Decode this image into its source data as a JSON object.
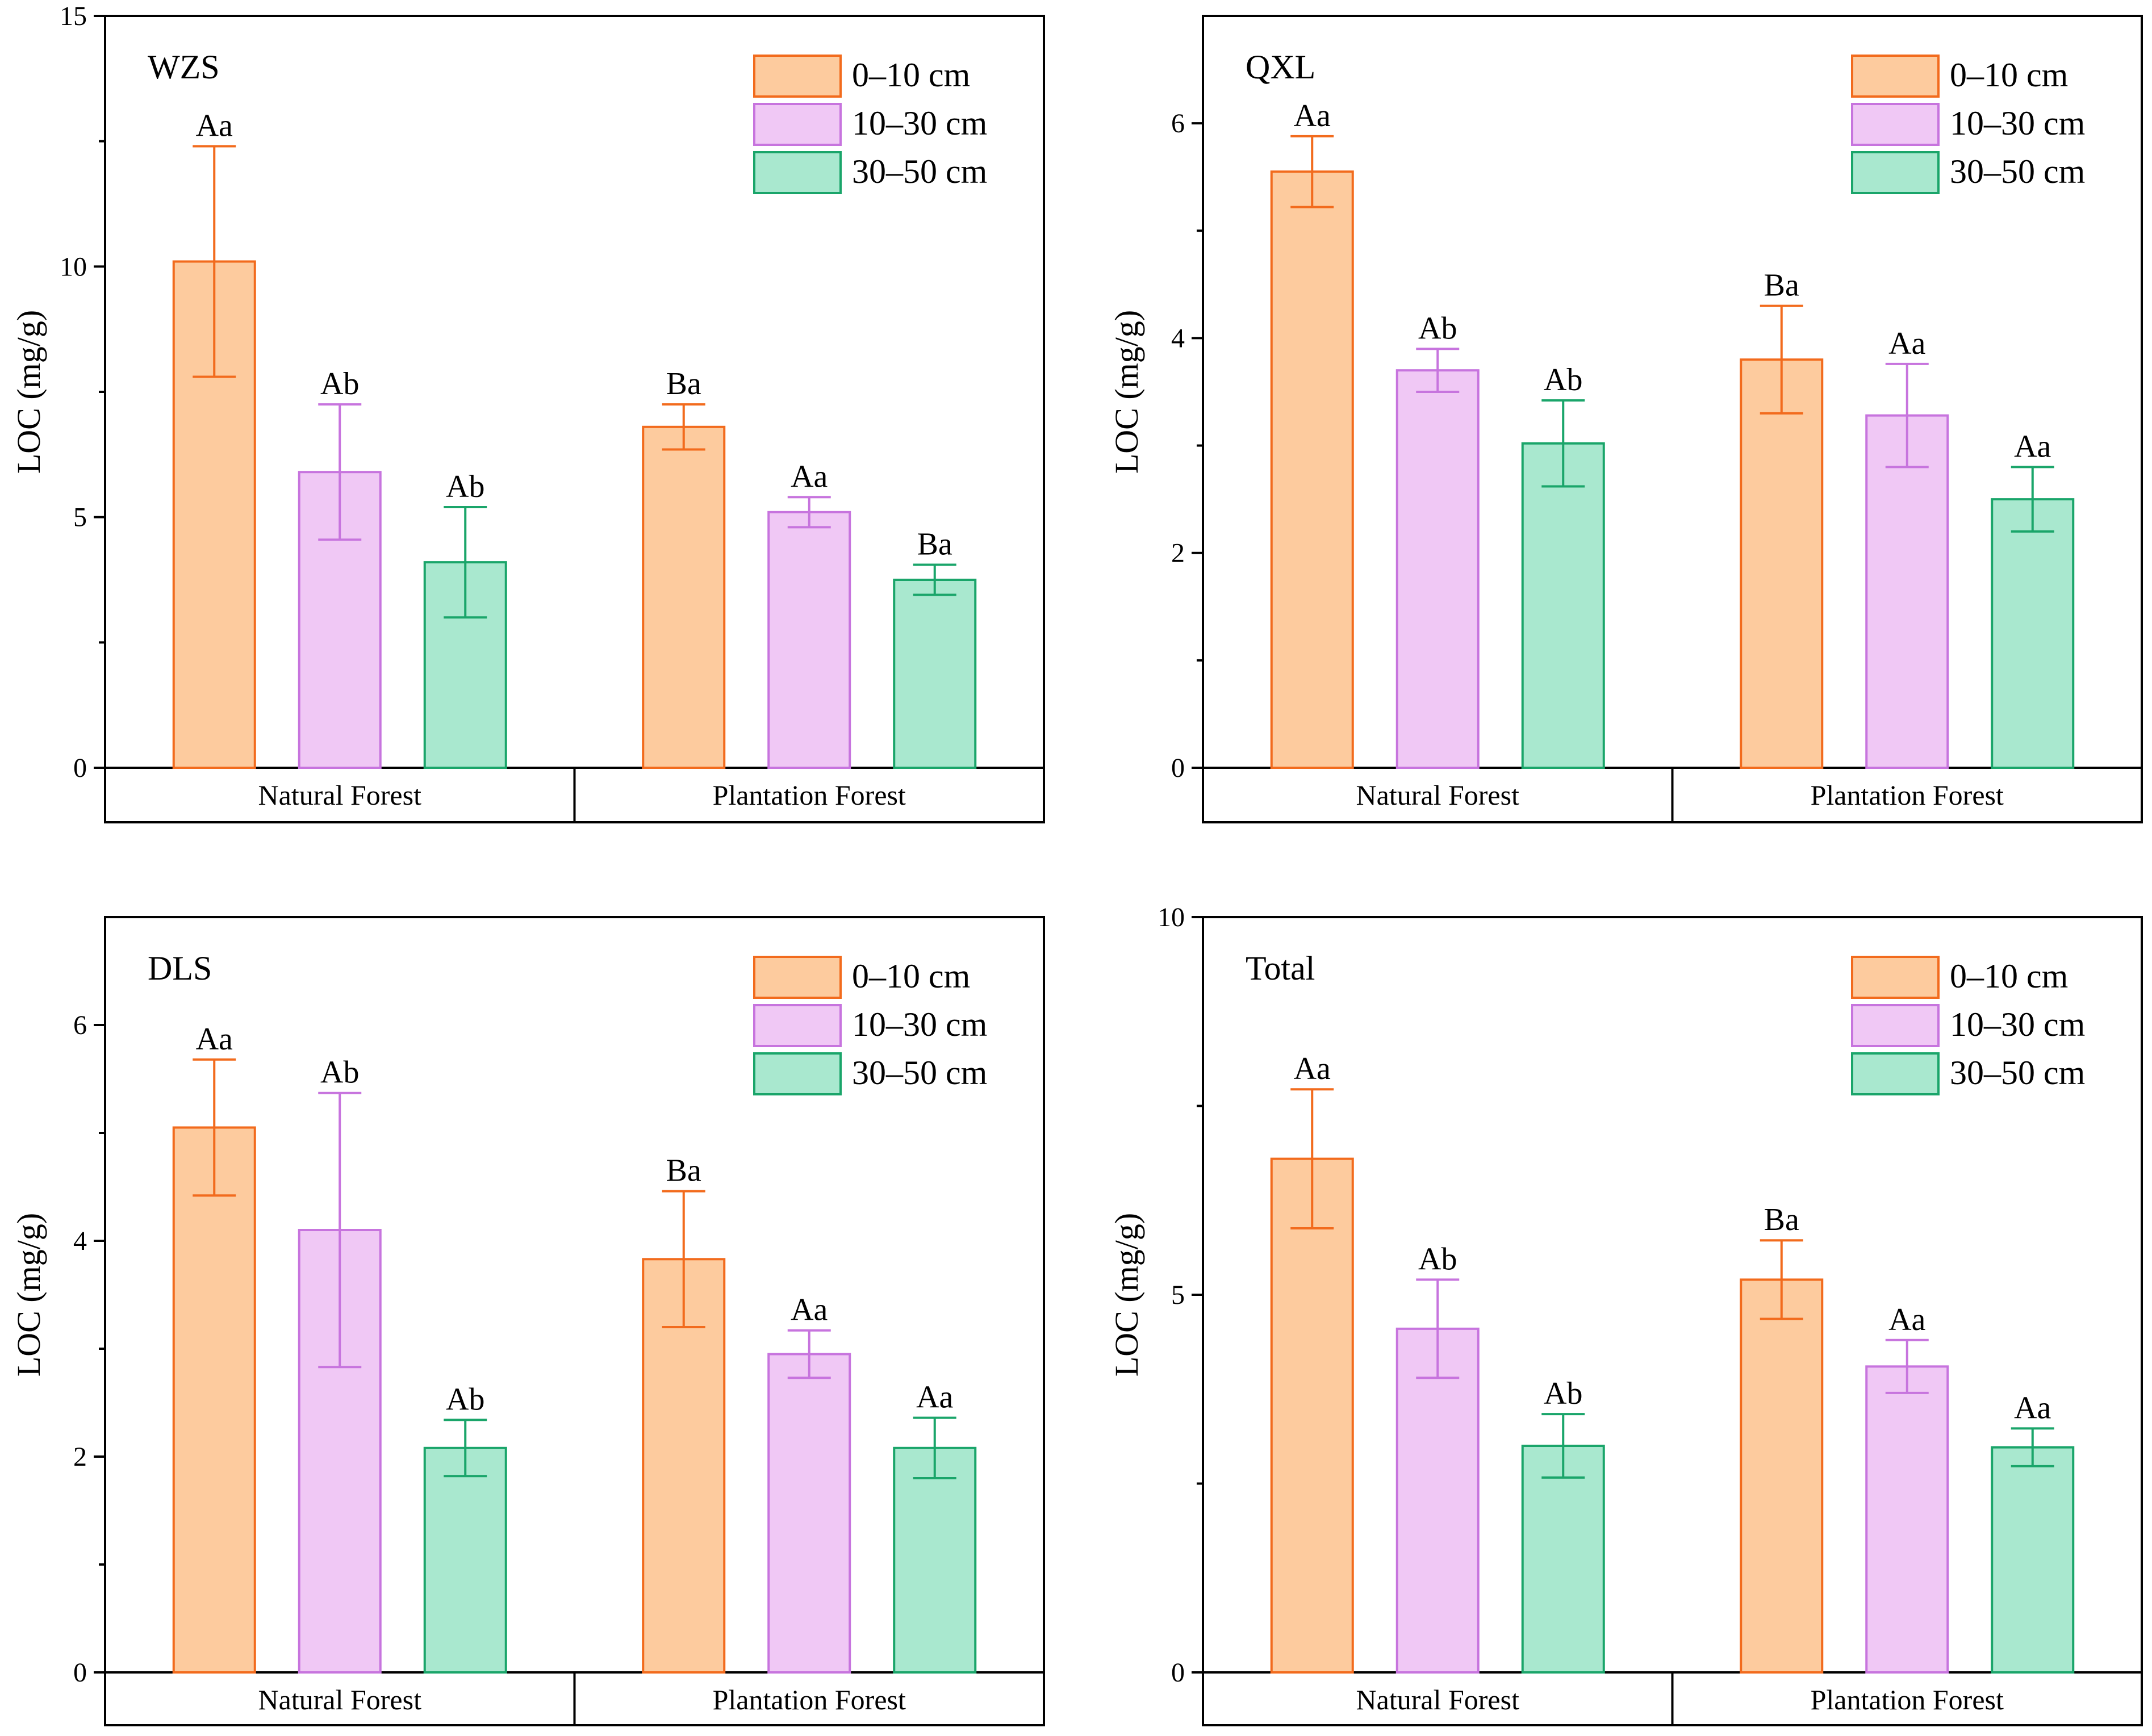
{
  "chart_data": [
    {
      "type": "bar",
      "panel_label": "WZS",
      "categories": [
        "Natural Forest",
        "Plantation Forest"
      ],
      "series": [
        {
          "name": "0–10 cm",
          "values": [
            10.1,
            6.8
          ],
          "errors": [
            2.3,
            0.45
          ],
          "letters": [
            "Aa",
            "Ba"
          ]
        },
        {
          "name": "10–30 cm",
          "values": [
            5.9,
            5.1
          ],
          "errors": [
            1.35,
            0.3
          ],
          "letters": [
            "Ab",
            "Aa"
          ]
        },
        {
          "name": "30–50 cm",
          "values": [
            4.1,
            3.75
          ],
          "errors": [
            1.1,
            0.3
          ],
          "letters": [
            "Ab",
            "Ba"
          ]
        }
      ],
      "ylabel": "LOC (mg/g)",
      "ylim": [
        0,
        15
      ],
      "yticks": [
        0,
        5,
        10,
        15
      ],
      "legend": "top-right"
    },
    {
      "type": "bar",
      "panel_label": "QXL",
      "categories": [
        "Natural Forest",
        "Plantation Forest"
      ],
      "series": [
        {
          "name": "0–10 cm",
          "values": [
            5.55,
            3.8
          ],
          "errors": [
            0.33,
            0.5
          ],
          "letters": [
            "Aa",
            "Ba"
          ]
        },
        {
          "name": "10–30 cm",
          "values": [
            3.7,
            3.28
          ],
          "errors": [
            0.2,
            0.48
          ],
          "letters": [
            "Ab",
            "Aa"
          ]
        },
        {
          "name": "30–50 cm",
          "values": [
            3.02,
            2.5
          ],
          "errors": [
            0.4,
            0.3
          ],
          "letters": [
            "Ab",
            "Aa"
          ]
        }
      ],
      "ylabel": "LOC (mg/g)",
      "ylim": [
        0,
        7
      ],
      "yticks": [
        0,
        2,
        4,
        6
      ],
      "legend": "top-right"
    },
    {
      "type": "bar",
      "panel_label": "DLS",
      "categories": [
        "Natural Forest",
        "Plantation Forest"
      ],
      "series": [
        {
          "name": "0–10 cm",
          "values": [
            5.05,
            3.83
          ],
          "errors": [
            0.63,
            0.63
          ],
          "letters": [
            "Aa",
            "Ba"
          ]
        },
        {
          "name": "10–30 cm",
          "values": [
            4.1,
            2.95
          ],
          "errors": [
            1.27,
            0.22
          ],
          "letters": [
            "Ab",
            "Aa"
          ]
        },
        {
          "name": "30–50 cm",
          "values": [
            2.08,
            2.08
          ],
          "errors": [
            0.26,
            0.28
          ],
          "letters": [
            "Ab",
            "Aa"
          ]
        }
      ],
      "ylabel": "LOC (mg/g)",
      "ylim": [
        0,
        7
      ],
      "yticks": [
        0,
        2,
        4,
        6
      ],
      "legend": "top-right"
    },
    {
      "type": "bar",
      "panel_label": "Total",
      "categories": [
        "Natural Forest",
        "Plantation Forest"
      ],
      "series": [
        {
          "name": "0–10 cm",
          "values": [
            6.8,
            5.2
          ],
          "errors": [
            0.92,
            0.52
          ],
          "letters": [
            "Aa",
            "Ba"
          ]
        },
        {
          "name": "10–30 cm",
          "values": [
            4.55,
            4.05
          ],
          "errors": [
            0.65,
            0.35
          ],
          "letters": [
            "Ab",
            "Aa"
          ]
        },
        {
          "name": "30–50 cm",
          "values": [
            3.0,
            2.98
          ],
          "errors": [
            0.42,
            0.25
          ],
          "letters": [
            "Ab",
            "Aa"
          ]
        }
      ],
      "ylabel": "LOC (mg/g)",
      "ylim": [
        0,
        10
      ],
      "yticks": [
        0,
        5,
        10
      ],
      "legend": "top-right"
    }
  ],
  "colors": {
    "series_fill": [
      "#fdcb9e",
      "#f0c8f5",
      "#a9e8cf"
    ],
    "series_stroke": [
      "#f26b1d",
      "#c774de",
      "#1aa56a"
    ]
  }
}
